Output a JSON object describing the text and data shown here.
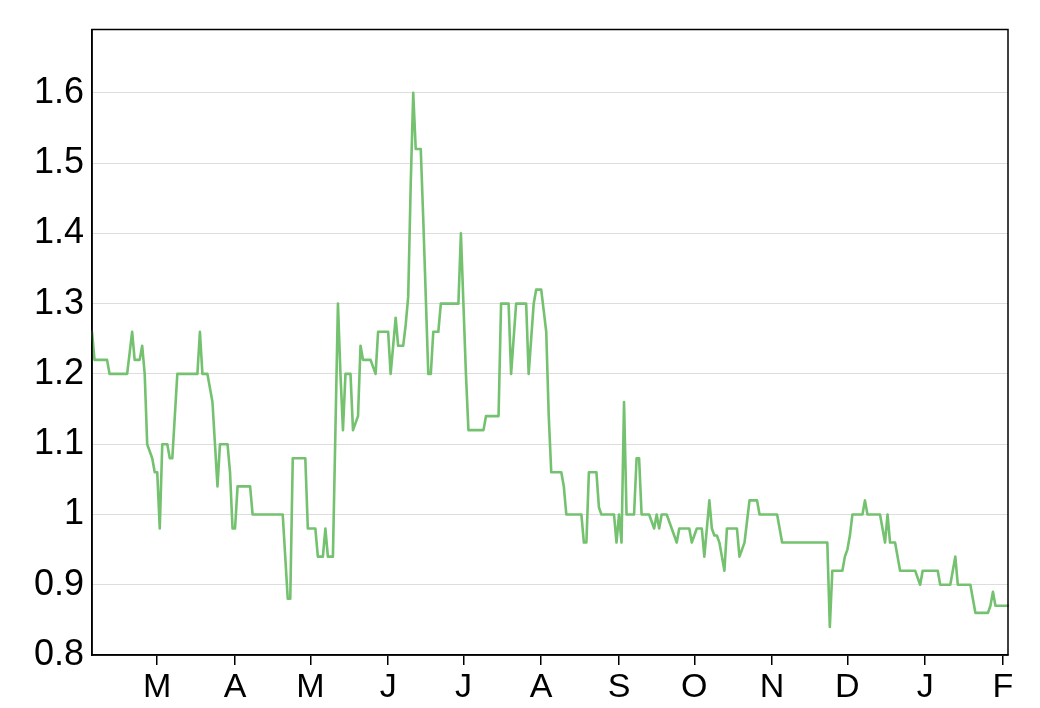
{
  "chart_data": {
    "type": "line",
    "categories": [
      null,
      null,
      null,
      null,
      null,
      null,
      null,
      null,
      null,
      null,
      null,
      null,
      null,
      null,
      null,
      null,
      null,
      null,
      null,
      null,
      null,
      null,
      null,
      null,
      null,
      null,
      "M",
      null,
      null,
      null,
      null,
      null,
      null,
      null,
      null,
      null,
      null,
      null,
      null,
      null,
      null,
      null,
      null,
      null,
      null,
      null,
      null,
      null,
      null,
      null,
      null,
      null,
      null,
      null,
      null,
      null,
      null,
      "A",
      null,
      null,
      null,
      null,
      null,
      null,
      null,
      null,
      null,
      null,
      null,
      null,
      null,
      null,
      null,
      null,
      null,
      null,
      null,
      null,
      null,
      null,
      null,
      null,
      null,
      null,
      null,
      null,
      null,
      "M",
      null,
      null,
      null,
      null,
      null,
      null,
      null,
      null,
      null,
      null,
      null,
      null,
      null,
      null,
      null,
      null,
      null,
      null,
      null,
      null,
      null,
      null,
      null,
      null,
      null,
      null,
      null,
      null,
      null,
      null,
      "J",
      null,
      null,
      null,
      null,
      null,
      null,
      null,
      null,
      null,
      null,
      null,
      null,
      null,
      null,
      null,
      null,
      null,
      null,
      null,
      null,
      null,
      null,
      null,
      null,
      null,
      null,
      null,
      null,
      null,
      "J",
      null,
      null,
      null,
      null,
      null,
      null,
      null,
      null,
      null,
      null,
      null,
      null,
      null,
      null,
      null,
      null,
      null,
      null,
      null,
      null,
      null,
      null,
      null,
      null,
      null,
      null,
      null,
      null,
      null,
      null,
      "A",
      null,
      null,
      null,
      null,
      null,
      null,
      null,
      null,
      null,
      null,
      null,
      null,
      null,
      null,
      null,
      null,
      null,
      null,
      null,
      null,
      null,
      null,
      null,
      null,
      null,
      null,
      null,
      null,
      null,
      null,
      "S",
      null,
      null,
      null,
      null,
      null,
      null,
      null,
      null,
      null,
      null,
      null,
      null,
      null,
      null,
      null,
      null,
      null,
      null,
      null,
      null,
      null,
      null,
      null,
      null,
      null,
      null,
      null,
      null,
      null,
      "O",
      null,
      null,
      null,
      null,
      null,
      null,
      null,
      null,
      null,
      null,
      null,
      null,
      null,
      null,
      null,
      null,
      null,
      null,
      null,
      null,
      null,
      null,
      null,
      null,
      null,
      null,
      null,
      null,
      null,
      null,
      "N",
      null,
      null,
      null,
      null,
      null,
      null,
      null,
      null,
      null,
      null,
      null,
      null,
      null,
      null,
      null,
      null,
      null,
      null,
      null,
      null,
      null,
      null,
      null,
      null,
      null,
      null,
      null,
      null,
      null,
      "D",
      null,
      null,
      null,
      null,
      null,
      null,
      null,
      null,
      null,
      null,
      null,
      null,
      null,
      null,
      null,
      null,
      null,
      null,
      null,
      null,
      null,
      null,
      null,
      null,
      null,
      null,
      null,
      null,
      null,
      null,
      "J",
      null,
      null,
      null,
      null,
      null,
      null,
      null,
      null,
      null,
      null,
      null,
      null,
      null,
      null,
      null,
      null,
      null,
      null,
      null,
      null,
      null,
      null,
      null,
      null,
      null,
      null,
      null,
      null,
      null,
      null,
      "F",
      null,
      null
    ],
    "series": [
      {
        "color": "#74c16f",
        "values": [
          1.26,
          1.22,
          1.22,
          1.22,
          1.22,
          1.22,
          1.22,
          1.2,
          1.2,
          1.2,
          1.2,
          1.2,
          1.2,
          1.2,
          1.2,
          1.23,
          1.26,
          1.22,
          1.22,
          1.22,
          1.24,
          1.2,
          1.1,
          1.09,
          1.08,
          1.06,
          1.06,
          0.98,
          1.1,
          1.1,
          1.1,
          1.08,
          1.08,
          1.14,
          1.2,
          1.2,
          1.2,
          1.2,
          1.2,
          1.2,
          1.2,
          1.2,
          1.2,
          1.26,
          1.2,
          1.2,
          1.2,
          1.18,
          1.16,
          1.1,
          1.04,
          1.1,
          1.1,
          1.1,
          1.1,
          1.06,
          0.98,
          0.98,
          1.04,
          1.04,
          1.04,
          1.04,
          1.04,
          1.04,
          1,
          1,
          1,
          1,
          1,
          1,
          1,
          1,
          1,
          1,
          1,
          1,
          1,
          0.94,
          0.88,
          0.88,
          1.08,
          1.08,
          1.08,
          1.08,
          1.08,
          1.08,
          0.98,
          0.98,
          0.98,
          0.98,
          0.94,
          0.94,
          0.94,
          0.98,
          0.94,
          0.94,
          0.94,
          1.12,
          1.3,
          1.2,
          1.12,
          1.2,
          1.2,
          1.2,
          1.12,
          1.13,
          1.14,
          1.24,
          1.22,
          1.22,
          1.22,
          1.22,
          1.21,
          1.2,
          1.26,
          1.26,
          1.26,
          1.26,
          1.26,
          1.2,
          1.24,
          1.28,
          1.24,
          1.24,
          1.24,
          1.27,
          1.31,
          1.47,
          1.6,
          1.52,
          1.52,
          1.52,
          1.42,
          1.31,
          1.2,
          1.2,
          1.26,
          1.26,
          1.26,
          1.3,
          1.3,
          1.3,
          1.3,
          1.3,
          1.3,
          1.3,
          1.3,
          1.4,
          1.3,
          1.2,
          1.12,
          1.12,
          1.12,
          1.12,
          1.12,
          1.12,
          1.12,
          1.14,
          1.14,
          1.14,
          1.14,
          1.14,
          1.14,
          1.3,
          1.3,
          1.3,
          1.3,
          1.2,
          1.25,
          1.3,
          1.3,
          1.3,
          1.3,
          1.3,
          1.2,
          1.25,
          1.3,
          1.32,
          1.32,
          1.32,
          1.29,
          1.26,
          1.14,
          1.06,
          1.06,
          1.06,
          1.06,
          1.06,
          1.04,
          1,
          1,
          1,
          1,
          1,
          1,
          1,
          0.96,
          0.96,
          1.06,
          1.06,
          1.06,
          1.06,
          1.01,
          1,
          1,
          1,
          1,
          1,
          1,
          0.96,
          1,
          0.96,
          1.16,
          1,
          1,
          1,
          1,
          1.08,
          1.08,
          1,
          1,
          1,
          1,
          0.99,
          0.98,
          1,
          0.98,
          1,
          1,
          1,
          0.99,
          0.98,
          0.97,
          0.96,
          0.98,
          0.98,
          0.98,
          0.98,
          0.98,
          0.96,
          0.97,
          0.98,
          0.98,
          0.98,
          0.94,
          0.98,
          1.02,
          0.98,
          0.97,
          0.97,
          0.96,
          0.94,
          0.92,
          0.98,
          0.98,
          0.98,
          0.98,
          0.98,
          0.94,
          0.95,
          0.96,
          0.99,
          1.02,
          1.02,
          1.02,
          1.02,
          1,
          1,
          1,
          1,
          1,
          1,
          1,
          1,
          0.98,
          0.96,
          0.96,
          0.96,
          0.96,
          0.96,
          0.96,
          0.96,
          0.96,
          0.96,
          0.96,
          0.96,
          0.96,
          0.96,
          0.96,
          0.96,
          0.96,
          0.96,
          0.96,
          0.96,
          0.84,
          0.92,
          0.92,
          0.92,
          0.92,
          0.92,
          0.94,
          0.95,
          0.97,
          1,
          1,
          1,
          1,
          1,
          1.02,
          1,
          1,
          1,
          1,
          1,
          1,
          0.98,
          0.96,
          1,
          0.96,
          0.96,
          0.96,
          0.94,
          0.92,
          0.92,
          0.92,
          0.92,
          0.92,
          0.92,
          0.92,
          0.91,
          0.9,
          0.92,
          0.92,
          0.92,
          0.92,
          0.92,
          0.92,
          0.92,
          0.9,
          0.9,
          0.9,
          0.9,
          0.9,
          0.92,
          0.94,
          0.9,
          0.9,
          0.9,
          0.9,
          0.9,
          0.9,
          0.88,
          0.86,
          0.86,
          0.86,
          0.86,
          0.86,
          0.86,
          0.87,
          0.89,
          0.87,
          0.87,
          0.87,
          0.87,
          0.87,
          0.87
        ]
      }
    ],
    "ylim": [
      0.8,
      1.69
    ],
    "yticks": [
      0.8,
      0.9,
      1,
      1.1,
      1.2,
      1.3,
      1.4,
      1.5,
      1.6
    ],
    "grid": "y",
    "legend": false,
    "marker": "none",
    "line_style": "solid"
  }
}
